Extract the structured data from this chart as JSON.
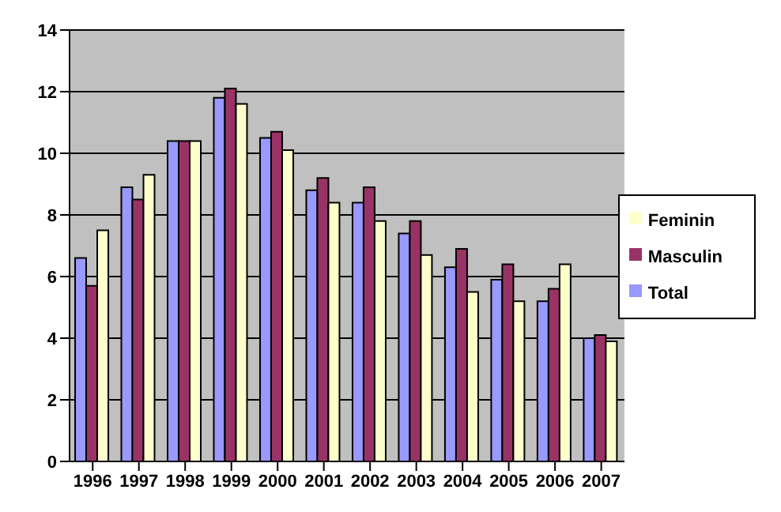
{
  "chart_data": {
    "type": "bar",
    "categories": [
      "1996",
      "1997",
      "1998",
      "1999",
      "2000",
      "2001",
      "2002",
      "2003",
      "2004",
      "2005",
      "2006",
      "2007"
    ],
    "series": [
      {
        "name": "Total",
        "color": "#9999ff",
        "values": [
          6.6,
          8.9,
          10.4,
          11.8,
          10.5,
          8.8,
          8.4,
          7.4,
          6.3,
          5.9,
          5.2,
          4.0
        ]
      },
      {
        "name": "Masculin",
        "color": "#993366",
        "values": [
          5.7,
          8.5,
          10.4,
          12.1,
          10.7,
          9.2,
          8.9,
          7.8,
          6.9,
          6.4,
          5.6,
          4.1
        ]
      },
      {
        "name": "Feminin",
        "color": "#ffffcc",
        "values": [
          7.5,
          9.3,
          10.4,
          11.6,
          10.1,
          8.4,
          7.8,
          6.7,
          5.5,
          5.2,
          6.4,
          3.9
        ]
      }
    ],
    "ylim": [
      0,
      14
    ],
    "yticks": [
      0,
      2,
      4,
      6,
      8,
      10,
      12,
      14
    ],
    "grid": "y",
    "legend": "right"
  }
}
